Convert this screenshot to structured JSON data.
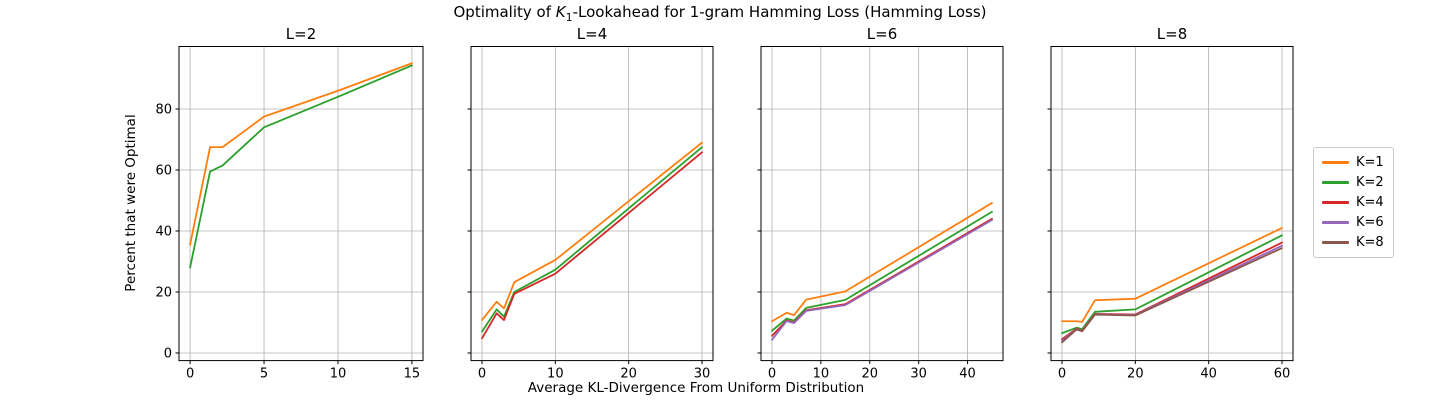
{
  "chart_data": {
    "type": "line",
    "title": "Optimality of K₁-Lookahead for 1-gram Hamming Loss (Hamming Loss)",
    "title_parts": {
      "prefix": "Optimality of ",
      "k": "K",
      "sub": "1",
      "suffix": "-Lookahead for 1-gram Hamming Loss (Hamming Loss)"
    },
    "xlabel": "Average KL-Divergence From Uniform Distribution",
    "ylabel": "Percent that were Optimal",
    "ylim": [
      -2.5,
      100.5
    ],
    "yticks": [
      0,
      20,
      40,
      60,
      80
    ],
    "grid": true,
    "legend_position": "right-outside",
    "grid_color": "#b0b0b0",
    "legend": [
      {
        "label": "K=1",
        "color": "#ff7f0e"
      },
      {
        "label": "K=2",
        "color": "#2ca02c"
      },
      {
        "label": "K=4",
        "color": "#d62728"
      },
      {
        "label": "K=6",
        "color": "#9467bd"
      },
      {
        "label": "K=8",
        "color": "#8c564b"
      }
    ],
    "panels": [
      {
        "title": "L=2",
        "xlim": [
          -0.75,
          15.75
        ],
        "xticks": [
          0,
          5,
          10,
          15
        ],
        "x": [
          0,
          1.35,
          2.2,
          5,
          10,
          15
        ],
        "series": [
          {
            "name": "K=1",
            "color": "#ff7f0e",
            "y": [
              35.5,
              67.5,
              67.5,
              77.5,
              86.0,
              95.0
            ]
          },
          {
            "name": "K=2",
            "color": "#2ca02c",
            "y": [
              28.0,
              59.5,
              61.5,
              74.0,
              84.0,
              94.3
            ]
          }
        ]
      },
      {
        "title": "L=4",
        "xlim": [
          -1.5,
          31.5
        ],
        "xticks": [
          0,
          10,
          20,
          30
        ],
        "x": [
          0,
          2,
          3,
          4.4,
          10,
          30
        ],
        "series": [
          {
            "name": "K=1",
            "color": "#ff7f0e",
            "y": [
              10.8,
              16.8,
              14.6,
              23.2,
              30.5,
              69.0
            ]
          },
          {
            "name": "K=2",
            "color": "#2ca02c",
            "y": [
              7.0,
              14.3,
              11.9,
              20.0,
              27.3,
              67.5
            ]
          },
          {
            "name": "K=4",
            "color": "#d62728",
            "y": [
              4.8,
              13.0,
              10.8,
              19.4,
              26.0,
              65.8
            ]
          }
        ]
      },
      {
        "title": "L=6",
        "xlim": [
          -2.25,
          47.25
        ],
        "xticks": [
          0,
          10,
          20,
          30,
          40
        ],
        "x": [
          0,
          3,
          4.5,
          7,
          15,
          45
        ],
        "series": [
          {
            "name": "K=1",
            "color": "#ff7f0e",
            "y": [
              10.4,
              13.2,
              12.4,
              17.5,
              20.2,
              49.2
            ]
          },
          {
            "name": "K=2",
            "color": "#2ca02c",
            "y": [
              7.3,
              11.3,
              10.6,
              14.8,
              17.4,
              46.3
            ]
          },
          {
            "name": "K=4",
            "color": "#d62728",
            "y": [
              5.6,
              10.7,
              10.0,
              14.0,
              16.0,
              44.0
            ]
          },
          {
            "name": "K=6",
            "color": "#9467bd",
            "y": [
              4.3,
              10.5,
              9.8,
              13.8,
              15.7,
              43.6
            ]
          }
        ]
      },
      {
        "title": "L=8",
        "xlim": [
          -3,
          63
        ],
        "xticks": [
          0,
          20,
          40,
          60
        ],
        "x": [
          0,
          4,
          5.5,
          9,
          20,
          60
        ],
        "series": [
          {
            "name": "K=1",
            "color": "#ff7f0e",
            "y": [
              10.4,
              10.4,
              10.2,
              17.3,
              17.8,
              41.0
            ]
          },
          {
            "name": "K=2",
            "color": "#2ca02c",
            "y": [
              6.5,
              8.3,
              7.8,
              13.5,
              14.3,
              38.6
            ]
          },
          {
            "name": "K=4",
            "color": "#d62728",
            "y": [
              4.5,
              8.0,
              7.3,
              12.8,
              12.6,
              36.2
            ]
          },
          {
            "name": "K=6",
            "color": "#9467bd",
            "y": [
              4.0,
              7.8,
              7.2,
              12.7,
              12.4,
              35.2
            ]
          },
          {
            "name": "K=8",
            "color": "#8c564b",
            "y": [
              3.5,
              7.7,
              7.1,
              12.6,
              12.3,
              34.4
            ]
          }
        ]
      }
    ]
  }
}
